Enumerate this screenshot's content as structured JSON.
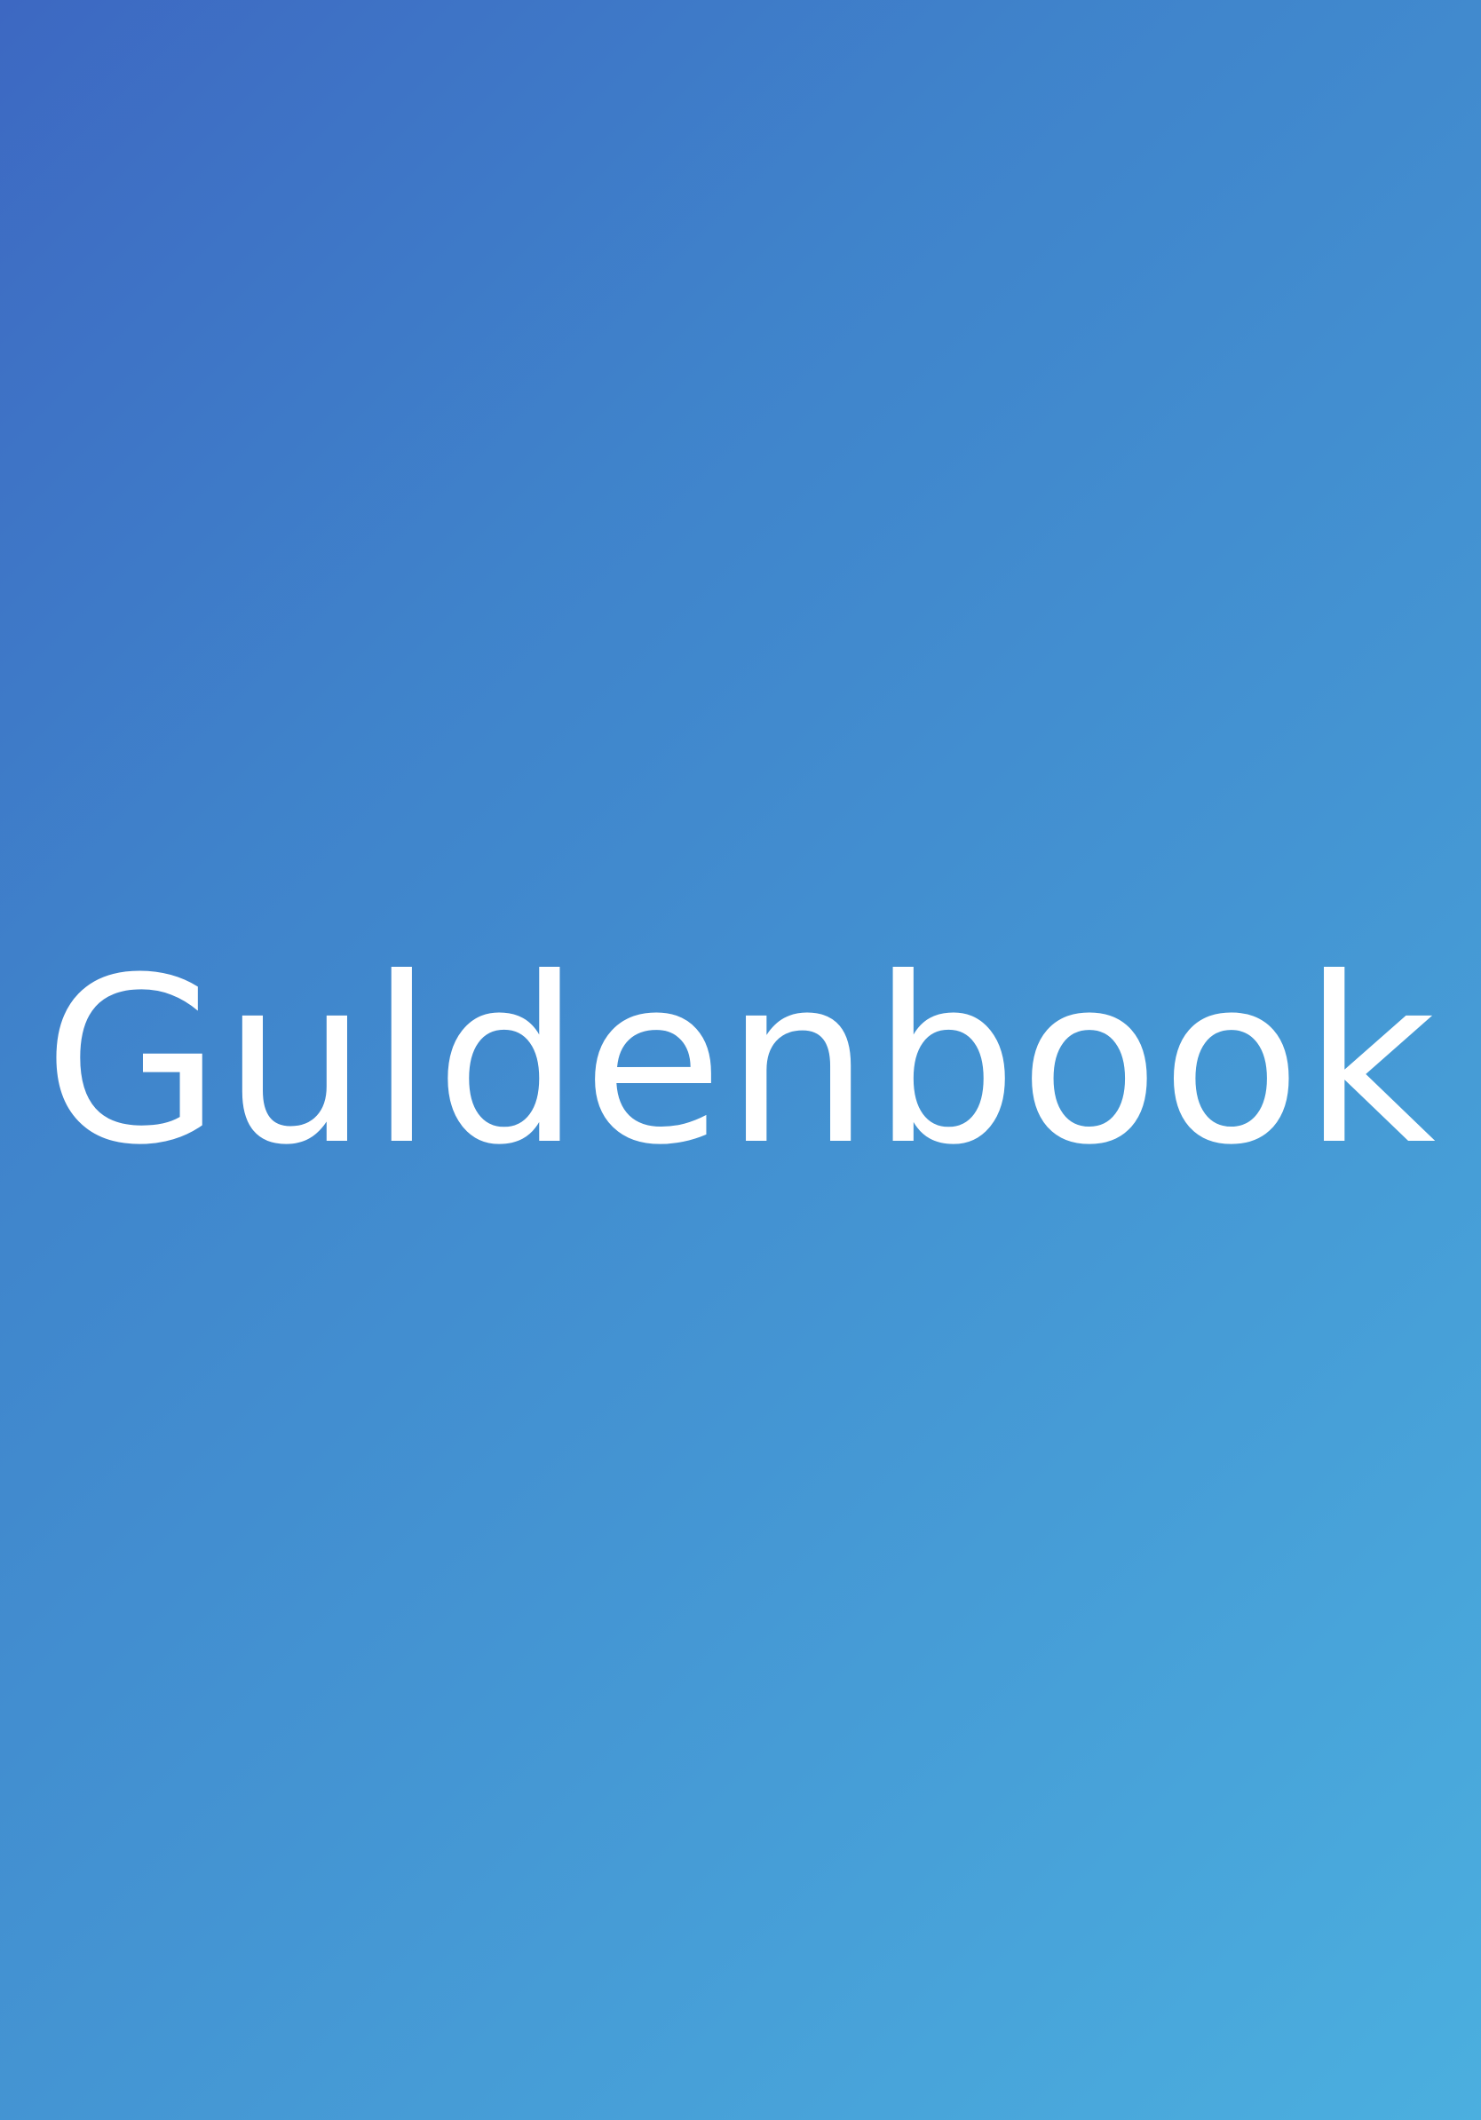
{
  "splash": {
    "app_name": "Guldenbook"
  },
  "colors": {
    "background_gradient": [
      "#3D68C2",
      "#3F83CB",
      "#4495D3",
      "#4BAFDF"
    ],
    "logo_text": "#FFFFFF"
  }
}
